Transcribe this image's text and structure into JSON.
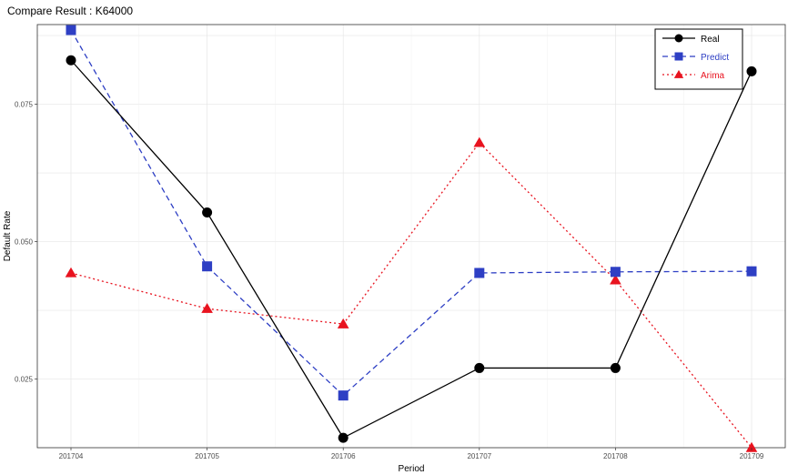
{
  "chart_data": {
    "type": "line",
    "title": "Compare Result : K64000",
    "xlabel": "Period",
    "ylabel": "Default Rate",
    "categories": [
      "201704",
      "201705",
      "201706",
      "201707",
      "201708",
      "201709"
    ],
    "yticks": [
      0.025,
      0.05,
      0.075
    ],
    "ytick_labels": [
      "0.025",
      "0.050",
      "0.075"
    ],
    "ylim": [
      0.0125,
      0.0895
    ],
    "grid": true,
    "legend_position": "top-right",
    "series": [
      {
        "name": "Real",
        "color": "#000000",
        "line_style": "solid",
        "marker": "circle",
        "values": [
          0.083,
          0.0553,
          0.0143,
          0.027,
          0.027,
          0.081
        ]
      },
      {
        "name": "Predict",
        "color": "#2e3fc4",
        "line_style": "dashed",
        "marker": "square",
        "values": [
          0.0885,
          0.0455,
          0.022,
          0.0443,
          0.0445,
          0.0446
        ]
      },
      {
        "name": "Arima",
        "color": "#e8131f",
        "line_style": "dotted",
        "marker": "triangle",
        "values": [
          0.0443,
          0.0378,
          0.035,
          0.068,
          0.043,
          0.0125
        ]
      }
    ]
  }
}
